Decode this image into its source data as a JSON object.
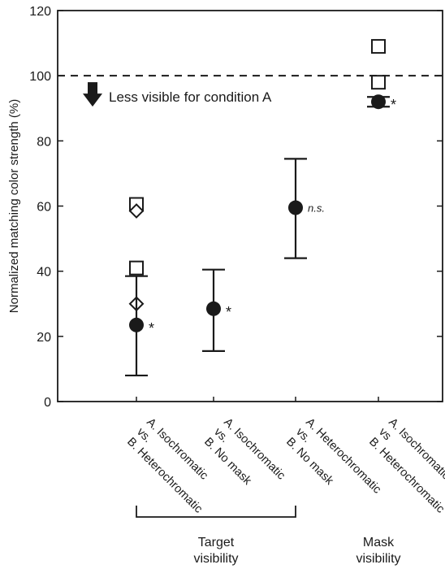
{
  "chart_data": {
    "type": "scatter",
    "ylabel": "Normalized matching color strength (%)",
    "ylim": [
      0,
      120
    ],
    "yticks": [
      0,
      20,
      40,
      60,
      80,
      100,
      120
    ],
    "reference_line": {
      "y": 100,
      "style": "dashed"
    },
    "annotation": "Less visible for condition A",
    "categories": [
      {
        "lines": [
          "A. Isochromatic",
          "vs.",
          "B. Heterochromatic"
        ]
      },
      {
        "lines": [
          "A. Isochromatic",
          "vs.",
          "B. No mask"
        ]
      },
      {
        "lines": [
          "A. Heterochromatic",
          "vs.",
          "B. No mask"
        ]
      },
      {
        "lines": [
          "A. Isochromatic",
          "vs",
          "B. Heterochromatic"
        ]
      }
    ],
    "means": [
      {
        "category": 0,
        "y": 23.5,
        "err_low": 8,
        "err_high": 38.5,
        "label": "*"
      },
      {
        "category": 1,
        "y": 28.5,
        "err_low": 15.5,
        "err_high": 40.5,
        "label": "*"
      },
      {
        "category": 2,
        "y": 59.5,
        "err_low": 44,
        "err_high": 74.5,
        "label": "n.s."
      },
      {
        "category": 3,
        "y": 92,
        "err_low": 90.5,
        "err_high": 93.5,
        "label": "*"
      }
    ],
    "individual_points": [
      {
        "category": 0,
        "marker": "square",
        "y": 60.5
      },
      {
        "category": 0,
        "marker": "square",
        "y": 41
      },
      {
        "category": 0,
        "marker": "diamond",
        "y": 58.5
      },
      {
        "category": 0,
        "marker": "diamond",
        "y": 30
      },
      {
        "category": 3,
        "marker": "square",
        "y": 109
      },
      {
        "category": 3,
        "marker": "square",
        "y": 98
      }
    ],
    "groups": [
      {
        "label_lines": [
          "Target",
          "visibility"
        ],
        "categories": [
          0,
          1,
          2
        ],
        "bracket": true
      },
      {
        "label_lines": [
          "Mask",
          "visibility"
        ],
        "categories": [
          3
        ],
        "bracket": false
      }
    ]
  }
}
